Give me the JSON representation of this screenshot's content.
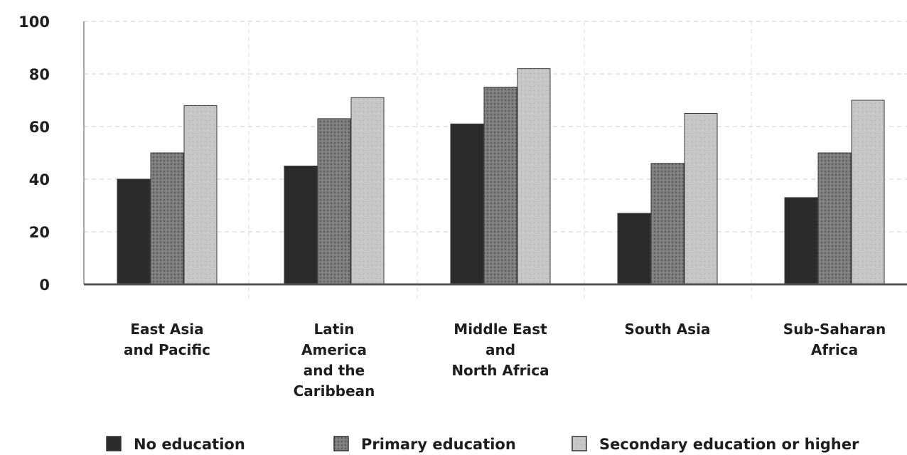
{
  "chart_data": {
    "type": "bar",
    "title": "",
    "xlabel": "",
    "ylabel": "",
    "ylim": [
      0,
      100
    ],
    "yticks": [
      "0",
      "20",
      "40",
      "60",
      "80",
      "100"
    ],
    "grid": true,
    "legend_position": "bottom",
    "categories": [
      [
        "East Asia",
        "and Pacific"
      ],
      [
        "Latin",
        "America",
        "and the",
        "Caribbean"
      ],
      [
        "Middle East",
        "and",
        "North Africa"
      ],
      [
        "South Asia"
      ],
      [
        "Sub-Saharan",
        "Africa"
      ]
    ],
    "series": [
      {
        "name": "No education",
        "values": [
          40,
          45,
          61,
          27,
          33
        ],
        "color": "#2b2b2b"
      },
      {
        "name": "Primary education",
        "values": [
          50,
          63,
          75,
          46,
          50
        ],
        "color": "#7a7a7a"
      },
      {
        "name": "Secondary education or higher",
        "values": [
          68,
          71,
          82,
          65,
          70
        ],
        "color": "#c4c4c4"
      }
    ]
  }
}
